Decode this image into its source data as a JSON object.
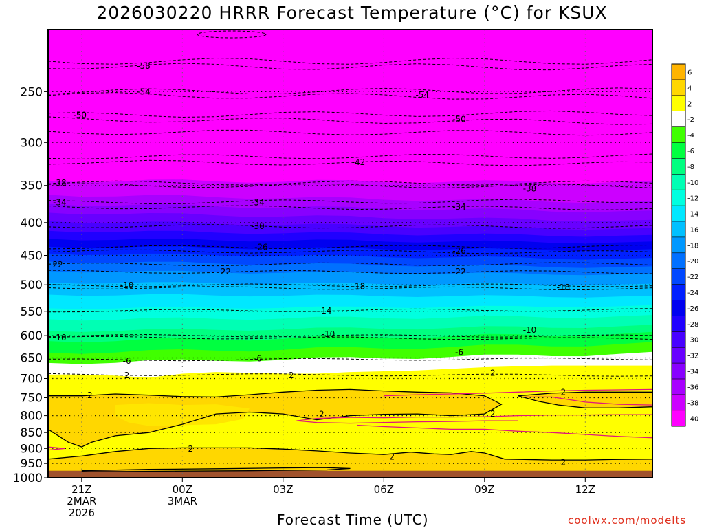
{
  "title": "2026030220 HRRR Forecast Temperature (°C) for KSUX",
  "x_axis_title": "Forecast Time (UTC)",
  "credit": "coolwx.com/modelts",
  "chart_data": {
    "type": "heatmap",
    "title": "2026030220 HRRR Forecast Temperature (°C) for KSUX",
    "xlabel": "Forecast Time (UTC)",
    "ylabel": "",
    "y_scale": "log",
    "y_inverted": true,
    "ylim": [
      1000,
      200
    ],
    "y_ticks": [
      250,
      300,
      350,
      400,
      450,
      500,
      550,
      600,
      650,
      700,
      750,
      800,
      850,
      900,
      950,
      1000
    ],
    "x_ticks": [
      {
        "value": 1,
        "label": [
          "21Z",
          "2MAR",
          "2026"
        ]
      },
      {
        "value": 4,
        "label": [
          "00Z",
          "3MAR"
        ]
      },
      {
        "value": 7,
        "label": [
          "03Z"
        ]
      },
      {
        "value": 10,
        "label": [
          "06Z"
        ]
      },
      {
        "value": 13,
        "label": [
          "09Z"
        ]
      },
      {
        "value": 16,
        "label": [
          "12Z"
        ]
      }
    ],
    "xlim": [
      0,
      18
    ],
    "grid": "dotted",
    "colorbar": {
      "placement": "right",
      "levels": [
        6,
        4,
        2,
        -2,
        -4,
        -6,
        -8,
        -10,
        -12,
        -14,
        -16,
        -18,
        -20,
        -22,
        -24,
        -26,
        -28,
        -30,
        -32,
        -34,
        -36,
        -38,
        -40
      ],
      "colors": [
        "#ffb400",
        "#ffd700",
        "#ffff00",
        "#ffffff",
        "#40ff00",
        "#00ff40",
        "#00ff80",
        "#00ffb4",
        "#00ffe0",
        "#00e8ff",
        "#00c0ff",
        "#0098ff",
        "#0070ff",
        "#0048ff",
        "#0020ff",
        "#0000f0",
        "#2000ff",
        "#4800ff",
        "#6800ff",
        "#8800ff",
        "#a800ff",
        "#cc00ff",
        "#ff00ff"
      ]
    },
    "surface_color": "#a0522d",
    "contour_labels": [
      {
        "t": 2.6,
        "p": 228,
        "label": "-58"
      },
      {
        "t": 2.6,
        "p": 250,
        "label": "-54"
      },
      {
        "t": 10.9,
        "p": 253,
        "label": "-54"
      },
      {
        "t": 0.7,
        "p": 272,
        "label": "-50"
      },
      {
        "t": 12.0,
        "p": 276,
        "label": "-50"
      },
      {
        "t": 9.0,
        "p": 322,
        "label": "-42"
      },
      {
        "t": 0.1,
        "p": 347,
        "label": "-38"
      },
      {
        "t": 14.1,
        "p": 354,
        "label": "-38"
      },
      {
        "t": 0.1,
        "p": 372,
        "label": "-34"
      },
      {
        "t": 6.0,
        "p": 372,
        "label": "-34"
      },
      {
        "t": 12.0,
        "p": 378,
        "label": "-34"
      },
      {
        "t": 6.0,
        "p": 405,
        "label": "-30"
      },
      {
        "t": 6.1,
        "p": 437,
        "label": "-26"
      },
      {
        "t": 12.0,
        "p": 443,
        "label": "-26"
      },
      {
        "t": 0.0,
        "p": 465,
        "label": "-22"
      },
      {
        "t": 5.0,
        "p": 477,
        "label": "-22"
      },
      {
        "t": 12.0,
        "p": 477,
        "label": "-22"
      },
      {
        "t": 2.1,
        "p": 501,
        "label": "-18"
      },
      {
        "t": 9.0,
        "p": 503,
        "label": "-18"
      },
      {
        "t": 15.1,
        "p": 505,
        "label": "-18"
      },
      {
        "t": 8.0,
        "p": 549,
        "label": "-14"
      },
      {
        "t": 0.1,
        "p": 604,
        "label": "-10"
      },
      {
        "t": 8.1,
        "p": 597,
        "label": "-10"
      },
      {
        "t": 14.1,
        "p": 588,
        "label": "-10"
      },
      {
        "t": 2.1,
        "p": 657,
        "label": "-6"
      },
      {
        "t": 6.0,
        "p": 652,
        "label": "-6"
      },
      {
        "t": 12.0,
        "p": 637,
        "label": "-6"
      },
      {
        "t": 2.1,
        "p": 692,
        "label": "2"
      },
      {
        "t": 7.0,
        "p": 692,
        "label": "2"
      },
      {
        "t": 13.0,
        "p": 686,
        "label": "2"
      },
      {
        "t": 1.0,
        "p": 744,
        "label": "2"
      },
      {
        "t": 15.1,
        "p": 735,
        "label": "2"
      },
      {
        "t": 7.9,
        "p": 796,
        "label": "2"
      },
      {
        "t": 13.0,
        "p": 795,
        "label": "2"
      },
      {
        "t": 4.0,
        "p": 902,
        "label": "2"
      },
      {
        "t": 10.0,
        "p": 928,
        "label": "2"
      },
      {
        "t": 15.1,
        "p": 946,
        "label": "2"
      }
    ]
  }
}
